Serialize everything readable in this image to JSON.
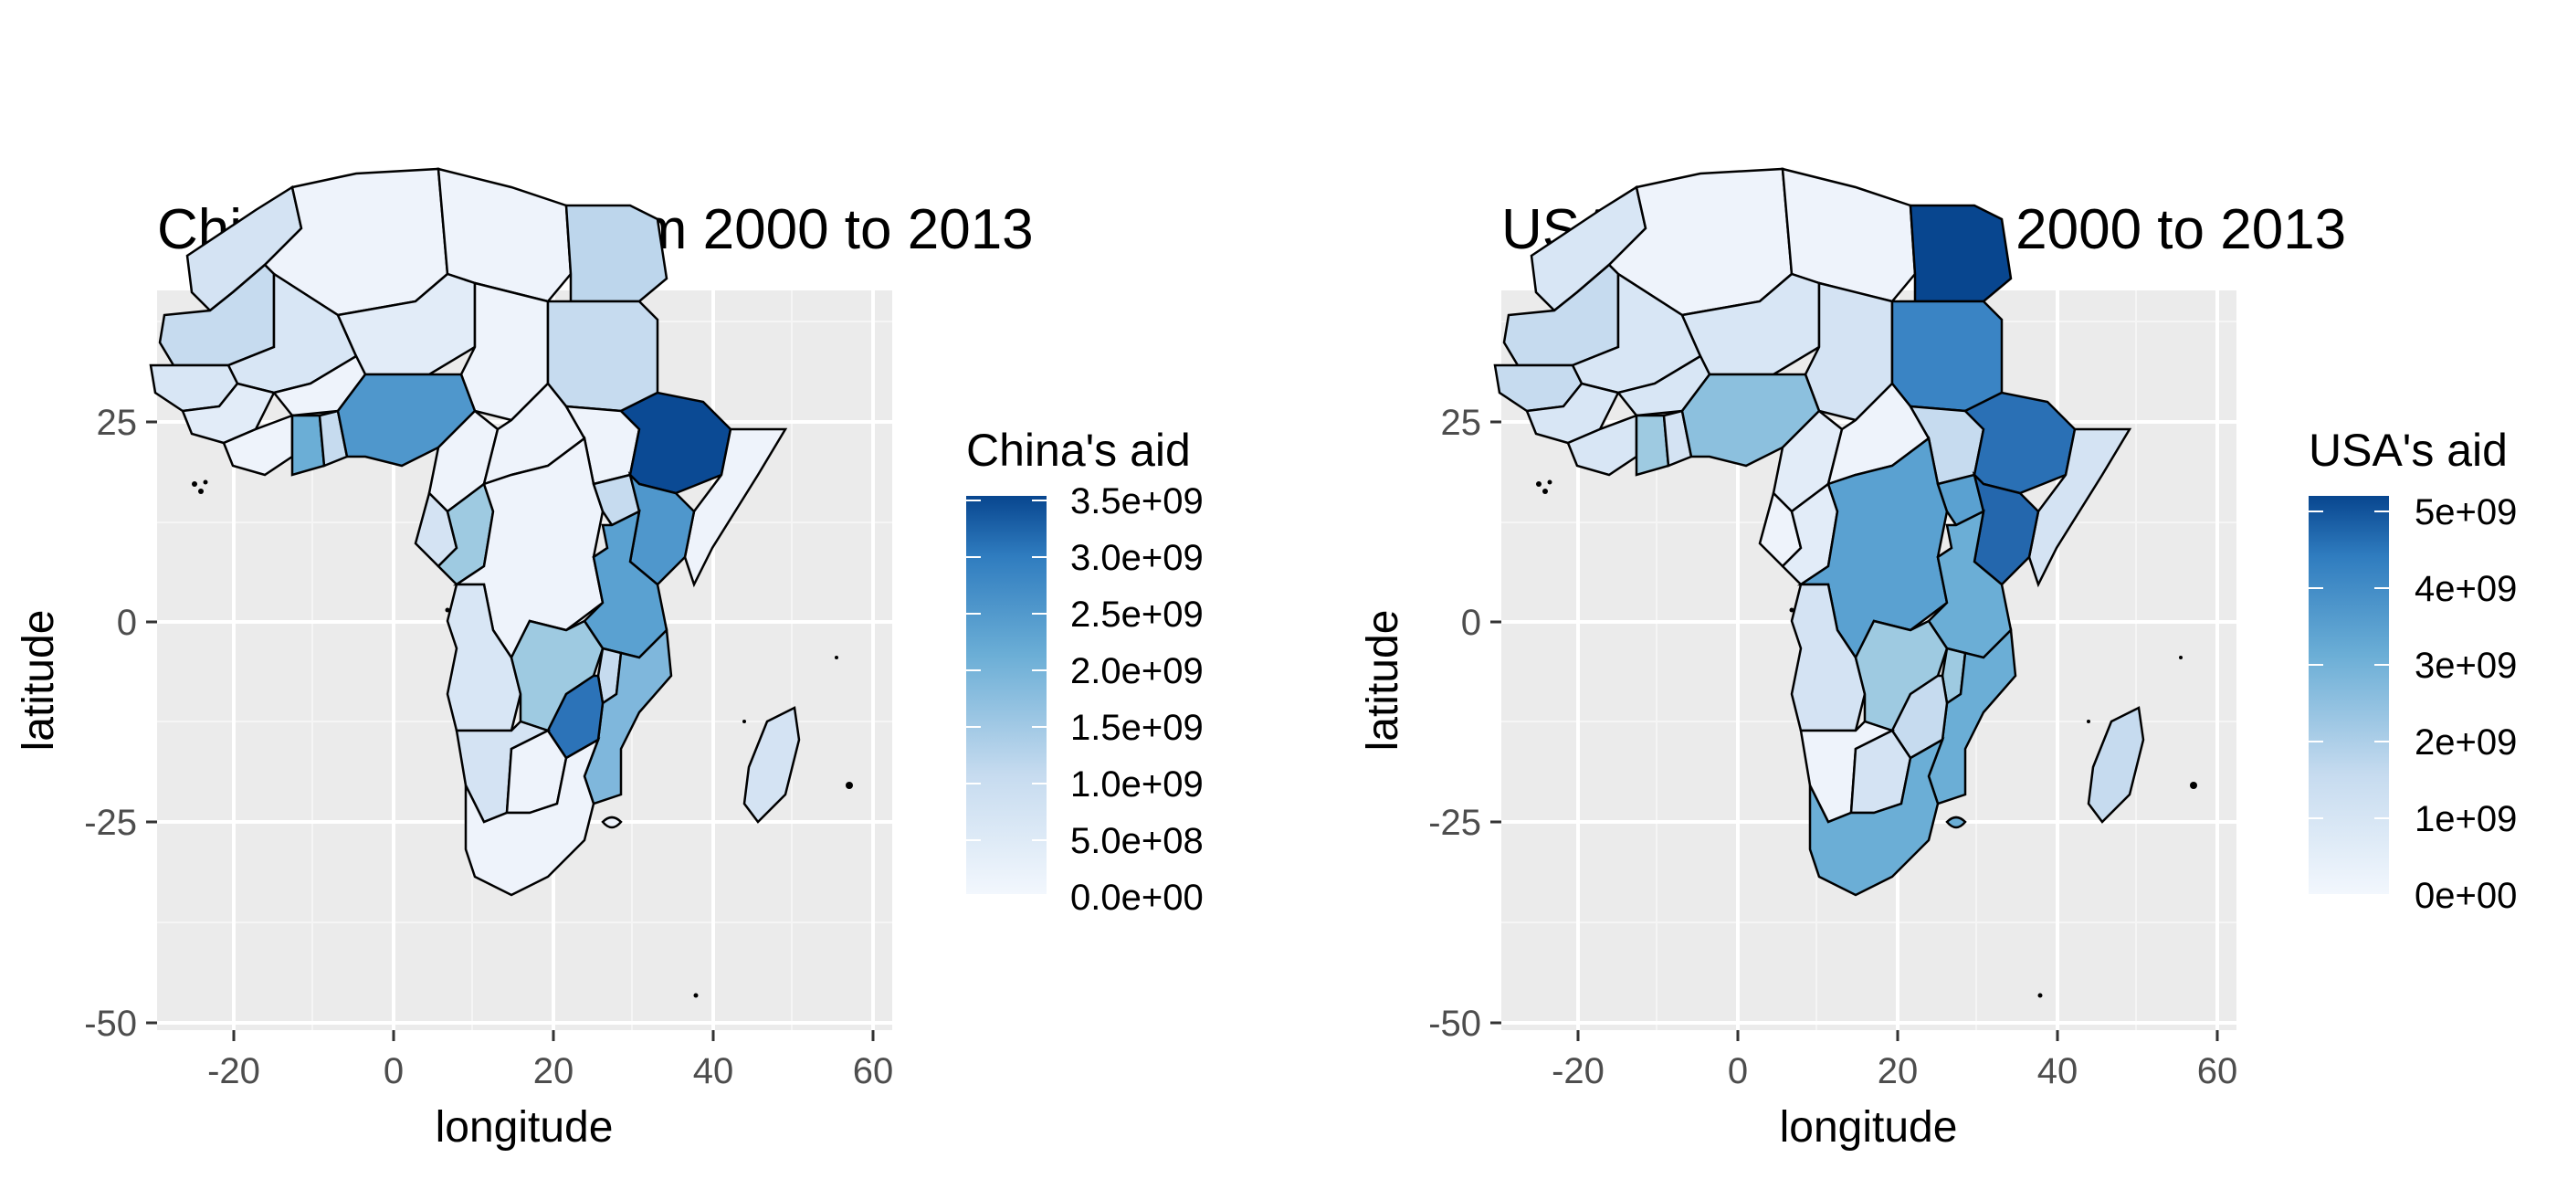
{
  "panels": [
    {
      "id": "china",
      "title": "China's total aid from 2000 to 2013",
      "xlabel": "longitude",
      "ylabel": "latitude",
      "x_ticks": [
        "-20",
        "0",
        "20",
        "40",
        "60"
      ],
      "y_ticks": [
        "25",
        "0",
        "-25",
        "-50"
      ],
      "legend_title": "China's aid",
      "legend_labels": [
        "3.5e+09",
        "3.0e+09",
        "2.5e+09",
        "2.0e+09",
        "1.5e+09",
        "1.0e+09",
        "5.0e+08",
        "0.0e+00"
      ]
    },
    {
      "id": "usa",
      "title": "USA's total aid from 2000 to 2013",
      "xlabel": "longitude",
      "ylabel": "latitude",
      "x_ticks": [
        "-20",
        "0",
        "20",
        "40",
        "60"
      ],
      "y_ticks": [
        "25",
        "0",
        "-25",
        "-50"
      ],
      "legend_title": "USA's aid",
      "legend_labels": [
        "5e+09",
        "4e+09",
        "3e+09",
        "2e+09",
        "1e+09",
        "0e+00"
      ]
    }
  ],
  "colors": {
    "panel_bg": "#ebebeb",
    "grid": "#ffffff",
    "scale_low": "#f2f7fd",
    "scale_high": "#08468f",
    "border": "#000000"
  }
}
